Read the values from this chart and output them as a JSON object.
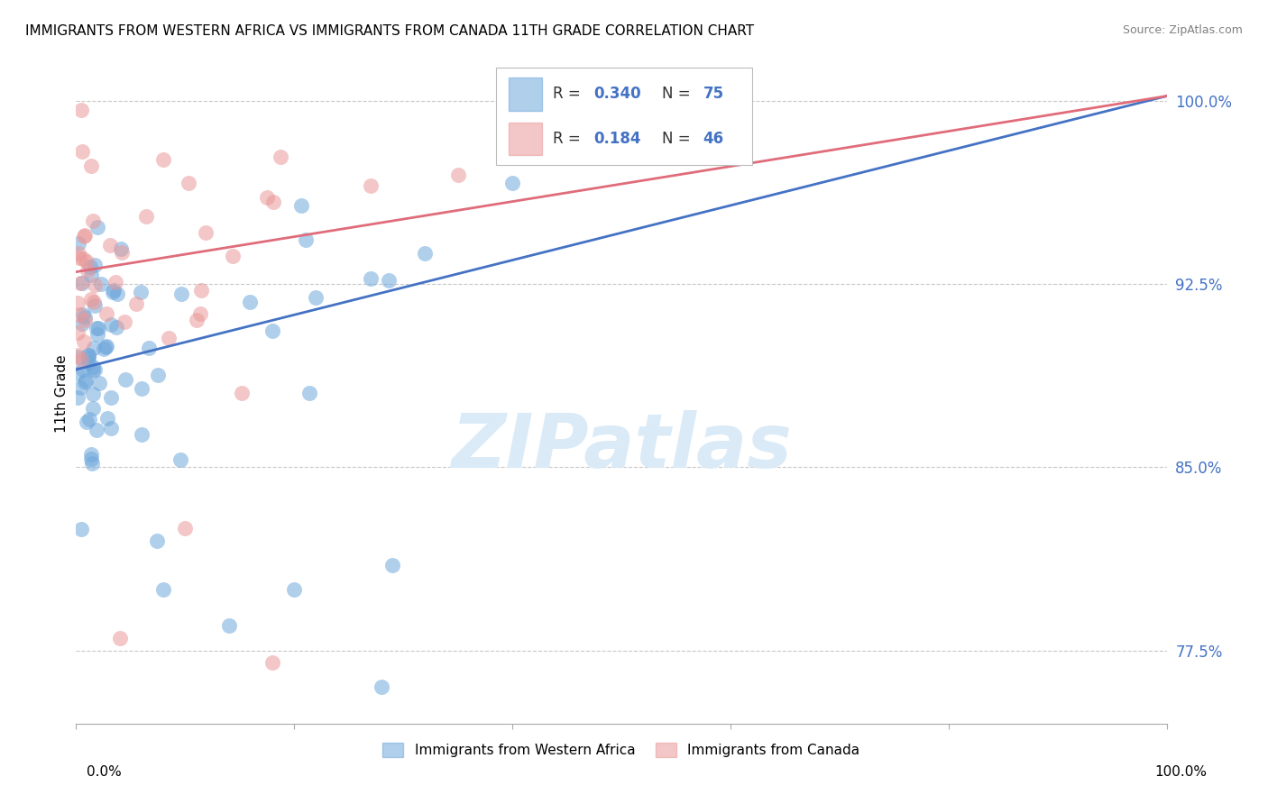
{
  "title": "IMMIGRANTS FROM WESTERN AFRICA VS IMMIGRANTS FROM CANADA 11TH GRADE CORRELATION CHART",
  "source": "Source: ZipAtlas.com",
  "ylabel": "11th Grade",
  "xlim": [
    0.0,
    1.0
  ],
  "ylim": [
    0.745,
    1.015
  ],
  "ytick_positions": [
    0.775,
    0.85,
    0.925,
    1.0
  ],
  "ytick_labels": [
    "77.5%",
    "85.0%",
    "92.5%",
    "100.0%"
  ],
  "blue_color": "#6fa8dc",
  "blue_line_color": "#4472c4",
  "pink_color": "#ea9999",
  "pink_line_color": "#e06c7a",
  "blue_text_color": "#4472c4",
  "grid_color": "#c8c8c8",
  "background_color": "#ffffff",
  "title_fontsize": 11,
  "source_fontsize": 9,
  "watermark_color": "#daeaf7",
  "watermark_fontsize": 60,
  "blue_R": 0.34,
  "blue_N": 75,
  "pink_R": 0.184,
  "pink_N": 46,
  "blue_line_y0": 0.89,
  "blue_line_y1": 1.002,
  "pink_line_y0": 0.93,
  "pink_line_y1": 1.002,
  "legend_label_blue": "Immigrants from Western Africa",
  "legend_label_pink": "Immigrants from Canada"
}
